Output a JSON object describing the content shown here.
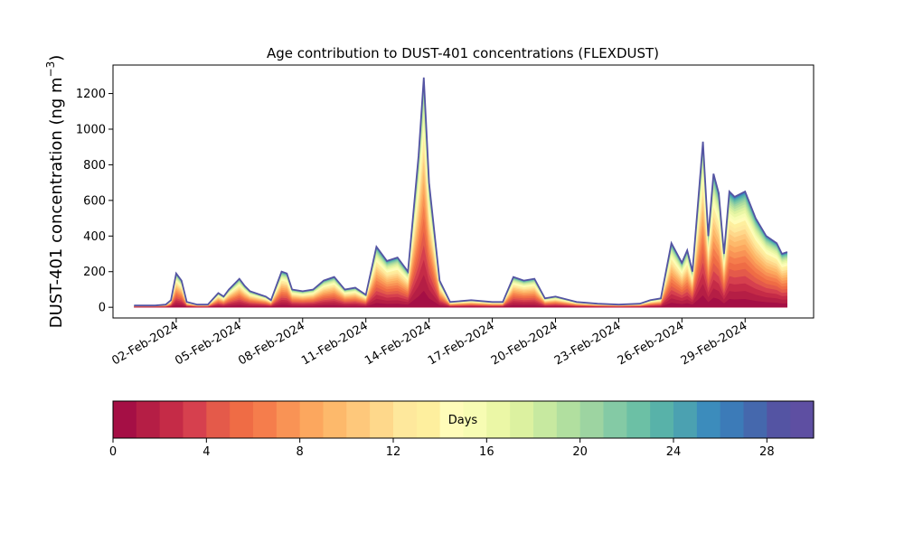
{
  "chart_data": {
    "type": "area",
    "title": "Age contribution to DUST-401 concentrations (FLEXDUST)",
    "ylabel": "DUST-401 concentration (ng m⁻³)",
    "ylabel_main": "DUST-401 concentration (ng m",
    "ylabel_sup": "−3",
    "ylabel_close": ")",
    "xlabel": "",
    "ylim": [
      -60,
      1360
    ],
    "yticks": [
      0,
      200,
      400,
      600,
      800,
      1000,
      1200
    ],
    "xlim": [
      "2024-01-30T00:00",
      "2024-03-03T06:00"
    ],
    "xticks": [
      "2024-02-02",
      "2024-02-05",
      "2024-02-08",
      "2024-02-11",
      "2024-02-14",
      "2024-02-17",
      "2024-02-20",
      "2024-02-23",
      "2024-02-26",
      "2024-02-29"
    ],
    "xtick_labels": [
      "02-Feb-2024",
      "05-Feb-2024",
      "08-Feb-2024",
      "11-Feb-2024",
      "14-Feb-2024",
      "17-Feb-2024",
      "20-Feb-2024",
      "23-Feb-2024",
      "26-Feb-2024",
      "29-Feb-2024"
    ],
    "series_description": "stacked area by age bin; values are total concentration",
    "total": {
      "x": [
        "2024-01-31T00:00",
        "2024-01-31T12:00",
        "2024-02-01T00:00",
        "2024-02-01T12:00",
        "2024-02-01T18:00",
        "2024-02-02T00:00",
        "2024-02-02T06:00",
        "2024-02-02T12:00",
        "2024-02-03T00:00",
        "2024-02-03T12:00",
        "2024-02-04T00:00",
        "2024-02-04T06:00",
        "2024-02-04T12:00",
        "2024-02-05T00:00",
        "2024-02-05T06:00",
        "2024-02-05T12:00",
        "2024-02-06T00:00",
        "2024-02-06T06:00",
        "2024-02-06T12:00",
        "2024-02-07T00:00",
        "2024-02-07T06:00",
        "2024-02-07T12:00",
        "2024-02-08T00:00",
        "2024-02-08T12:00",
        "2024-02-09T00:00",
        "2024-02-09T12:00",
        "2024-02-10T00:00",
        "2024-02-10T12:00",
        "2024-02-11T00:00",
        "2024-02-11T12:00",
        "2024-02-12T00:00",
        "2024-02-12T12:00",
        "2024-02-13T00:00",
        "2024-02-13T06:00",
        "2024-02-13T12:00",
        "2024-02-13T18:00",
        "2024-02-14T00:00",
        "2024-02-14T12:00",
        "2024-02-15T00:00",
        "2024-02-16T00:00",
        "2024-02-17T00:00",
        "2024-02-17T12:00",
        "2024-02-18T00:00",
        "2024-02-18T12:00",
        "2024-02-19T00:00",
        "2024-02-19T12:00",
        "2024-02-20T00:00",
        "2024-02-21T00:00",
        "2024-02-22T00:00",
        "2024-02-23T00:00",
        "2024-02-24T00:00",
        "2024-02-24T12:00",
        "2024-02-25T00:00",
        "2024-02-25T12:00",
        "2024-02-26T00:00",
        "2024-02-26T06:00",
        "2024-02-26T12:00",
        "2024-02-27T00:00",
        "2024-02-27T06:00",
        "2024-02-27T12:00",
        "2024-02-27T18:00",
        "2024-02-28T00:00",
        "2024-02-28T06:00",
        "2024-02-28T12:00",
        "2024-02-29T00:00",
        "2024-02-29T12:00",
        "2024-03-01T00:00",
        "2024-03-01T12:00",
        "2024-03-01T18:00",
        "2024-03-02T00:00"
      ],
      "values": [
        10,
        10,
        10,
        15,
        40,
        190,
        150,
        30,
        15,
        15,
        80,
        60,
        100,
        160,
        120,
        90,
        70,
        60,
        40,
        200,
        190,
        100,
        90,
        100,
        150,
        170,
        100,
        110,
        70,
        340,
        260,
        280,
        200,
        520,
        850,
        1290,
        700,
        150,
        30,
        40,
        30,
        30,
        170,
        150,
        160,
        50,
        60,
        30,
        20,
        15,
        20,
        40,
        50,
        360,
        250,
        320,
        200,
        930,
        400,
        750,
        640,
        300,
        650,
        620,
        650,
        500,
        400,
        360,
        300,
        310
      ]
    },
    "colorbar": {
      "label": "Days",
      "min": 0,
      "max": 30,
      "ticks": [
        0,
        4,
        8,
        12,
        16,
        20,
        24,
        28
      ],
      "colors": [
        "#a50f45",
        "#b51e45",
        "#c52b47",
        "#d6404e",
        "#e45a4a",
        "#ef6c45",
        "#f57d4c",
        "#f99355",
        "#fca75e",
        "#fdb96b",
        "#fec87b",
        "#fed88b",
        "#fee89c",
        "#feef9e",
        "#fffcb9",
        "#f7fcb3",
        "#ebf7a6",
        "#dcf1a0",
        "#c7e9a0",
        "#b1df9f",
        "#9dd4a1",
        "#84caa5",
        "#6cc0a5",
        "#58b2a9",
        "#4ba1b1",
        "#3c8cbc",
        "#3c7bb8",
        "#4568ad",
        "#5454a3",
        "#5e4fa2"
      ]
    }
  }
}
